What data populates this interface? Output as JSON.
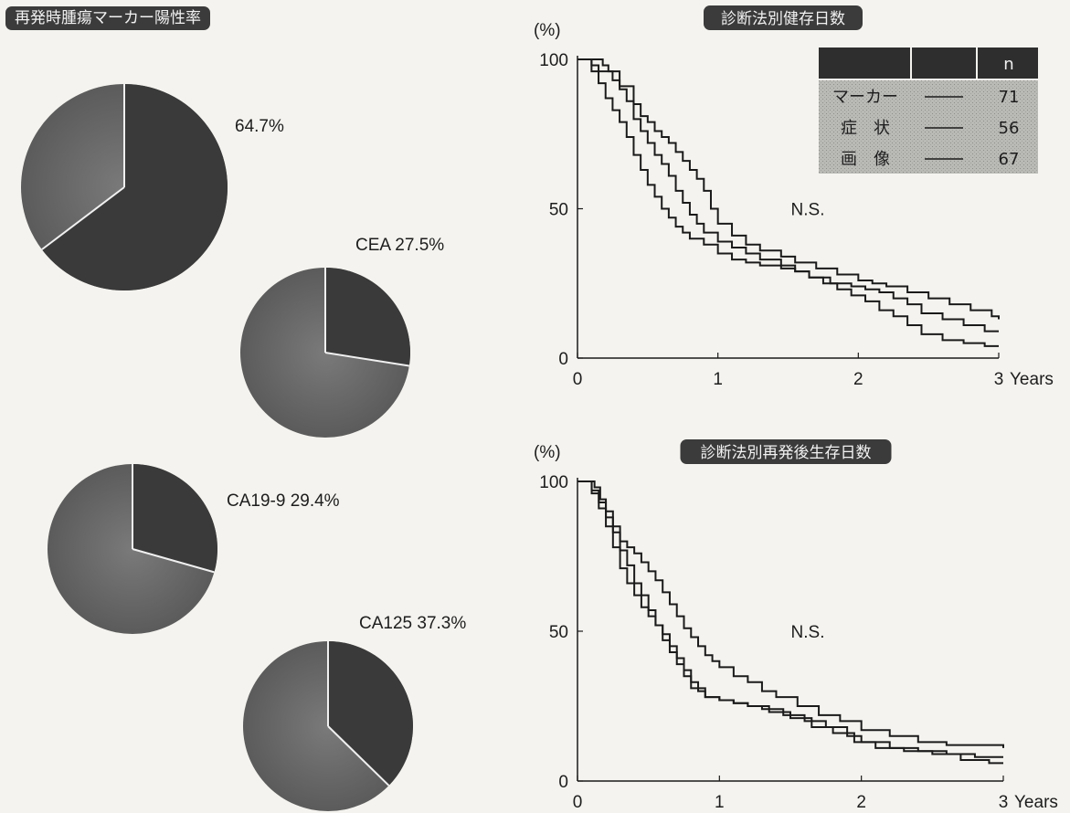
{
  "main_title": "再発時腫瘍マーカー陽性率",
  "colors": {
    "pie_dark": "#3a3a3a",
    "pie_light": "#6a6a6a",
    "line": "#1a1a1a",
    "banner": "#3b3b3b"
  },
  "chart_data": [
    {
      "type": "pie",
      "title": "",
      "slices": [
        {
          "label": "",
          "value": 64.7,
          "display": "64.7%"
        },
        {
          "label": "",
          "value": 35.3
        }
      ]
    },
    {
      "type": "pie",
      "title": "",
      "slices": [
        {
          "label": "CEA",
          "value": 27.5,
          "display": "CEA 27.5%"
        },
        {
          "label": "",
          "value": 72.5
        }
      ]
    },
    {
      "type": "pie",
      "title": "",
      "slices": [
        {
          "label": "CA19-9",
          "value": 29.4,
          "display": "CA19-9 29.4%"
        },
        {
          "label": "",
          "value": 70.6
        }
      ]
    },
    {
      "type": "pie",
      "title": "",
      "slices": [
        {
          "label": "CA125",
          "value": 37.3,
          "display": "CA125 37.3%"
        },
        {
          "label": "",
          "value": 62.7
        }
      ]
    },
    {
      "type": "line",
      "step": true,
      "title": "診断法別健存日数",
      "ylabel": "(%)",
      "xlabel": "Years",
      "xlim": [
        0,
        3
      ],
      "ylim": [
        0,
        100
      ],
      "xticks": [
        "0",
        "1",
        "2",
        "3"
      ],
      "yticks": [
        "0",
        "50",
        "100"
      ],
      "annotation": "N.S.",
      "legend": {
        "header": [
          "",
          "",
          "n"
        ],
        "rows": [
          {
            "name": "マーカー",
            "line": "――",
            "n": "71"
          },
          {
            "name": "症　状",
            "line": "――",
            "n": "56"
          },
          {
            "name": "画　像",
            "line": "――",
            "n": "67"
          }
        ]
      },
      "series": [
        {
          "x": [
            0,
            0.12,
            0.18,
            0.22,
            0.3,
            0.4,
            0.45,
            0.5,
            0.55,
            0.6,
            0.65,
            0.7,
            0.75,
            0.8,
            0.85,
            0.9,
            0.95,
            1.0,
            1.1,
            1.2,
            1.3,
            1.45,
            1.55,
            1.7,
            1.85,
            2.0,
            2.1,
            2.2,
            2.35,
            2.5,
            2.65,
            2.8,
            2.95,
            3.0
          ],
          "y": [
            100,
            100,
            98,
            96,
            91,
            85,
            81,
            79,
            76,
            74,
            72,
            69,
            66,
            63,
            60,
            56,
            50,
            45,
            41,
            38,
            36,
            34,
            32,
            30,
            28,
            26,
            25,
            24,
            22,
            20,
            18,
            16,
            14,
            13
          ]
        },
        {
          "x": [
            0,
            0.1,
            0.15,
            0.25,
            0.3,
            0.35,
            0.4,
            0.45,
            0.5,
            0.55,
            0.6,
            0.65,
            0.7,
            0.75,
            0.8,
            0.85,
            0.9,
            1.0,
            1.1,
            1.2,
            1.3,
            1.45,
            1.55,
            1.65,
            1.8,
            1.95,
            2.05,
            2.15,
            2.25,
            2.35,
            2.45,
            2.6,
            2.75,
            2.9,
            3.0
          ],
          "y": [
            100,
            98,
            96,
            93,
            90,
            86,
            80,
            76,
            72,
            68,
            65,
            61,
            56,
            52,
            48,
            45,
            42,
            39,
            37,
            35,
            33,
            31,
            29,
            27,
            25,
            24,
            23,
            22,
            20,
            18,
            15,
            13,
            11,
            9,
            9
          ]
        },
        {
          "x": [
            0,
            0.1,
            0.15,
            0.2,
            0.25,
            0.3,
            0.35,
            0.4,
            0.45,
            0.5,
            0.55,
            0.6,
            0.65,
            0.7,
            0.75,
            0.8,
            0.9,
            1.0,
            1.1,
            1.2,
            1.3,
            1.45,
            1.55,
            1.65,
            1.75,
            1.85,
            1.95,
            2.05,
            2.15,
            2.25,
            2.35,
            2.45,
            2.6,
            2.75,
            2.9,
            3.0
          ],
          "y": [
            100,
            96,
            92,
            87,
            83,
            79,
            74,
            68,
            63,
            58,
            54,
            50,
            47,
            44,
            42,
            40,
            38,
            35,
            33,
            32,
            31,
            30,
            29,
            27,
            25,
            23,
            21,
            19,
            16,
            14,
            11,
            8,
            6,
            5,
            4,
            4
          ]
        }
      ]
    },
    {
      "type": "line",
      "step": true,
      "title": "診断法別再発後生存日数",
      "ylabel": "(%)",
      "xlabel": "Years",
      "xlim": [
        0,
        3
      ],
      "ylim": [
        0,
        100
      ],
      "xticks": [
        "0",
        "1",
        "2",
        "3"
      ],
      "yticks": [
        "0",
        "50",
        "100"
      ],
      "annotation": "N.S.",
      "series": [
        {
          "x": [
            0,
            0.12,
            0.16,
            0.2,
            0.25,
            0.3,
            0.35,
            0.4,
            0.45,
            0.5,
            0.55,
            0.6,
            0.65,
            0.7,
            0.75,
            0.8,
            0.85,
            0.9,
            0.95,
            1.0,
            1.1,
            1.2,
            1.3,
            1.4,
            1.55,
            1.7,
            1.85,
            2.0,
            2.2,
            2.4,
            2.6,
            2.8,
            3.0
          ],
          "y": [
            100,
            98,
            94,
            90,
            85,
            80,
            78,
            76,
            73,
            70,
            67,
            63,
            59,
            55,
            51,
            48,
            45,
            42,
            40,
            38,
            35,
            33,
            30,
            28,
            25,
            22,
            20,
            17,
            15,
            13,
            12,
            12,
            11
          ]
        },
        {
          "x": [
            0,
            0.1,
            0.15,
            0.2,
            0.25,
            0.3,
            0.35,
            0.4,
            0.45,
            0.5,
            0.55,
            0.6,
            0.65,
            0.7,
            0.75,
            0.8,
            0.9,
            1.0,
            1.1,
            1.2,
            1.3,
            1.45,
            1.6,
            1.75,
            1.9,
            2.0,
            2.2,
            2.4,
            2.6,
            2.8,
            3.0
          ],
          "y": [
            100,
            97,
            93,
            88,
            83,
            77,
            72,
            66,
            62,
            57,
            52,
            47,
            43,
            39,
            35,
            31,
            28,
            27,
            26,
            25,
            24,
            22,
            20,
            18,
            15,
            13,
            11,
            10,
            9,
            8,
            8
          ]
        },
        {
          "x": [
            0,
            0.1,
            0.15,
            0.2,
            0.25,
            0.3,
            0.35,
            0.4,
            0.45,
            0.5,
            0.55,
            0.6,
            0.65,
            0.7,
            0.75,
            0.8,
            0.85,
            0.9,
            1.0,
            1.1,
            1.2,
            1.35,
            1.5,
            1.65,
            1.8,
            1.95,
            2.1,
            2.3,
            2.5,
            2.7,
            2.9,
            3.0
          ],
          "y": [
            100,
            96,
            91,
            85,
            78,
            71,
            66,
            62,
            58,
            55,
            52,
            49,
            45,
            41,
            37,
            33,
            30,
            28,
            27,
            26,
            25,
            23,
            21,
            18,
            16,
            13,
            11,
            10,
            9,
            7,
            6,
            6
          ]
        }
      ]
    }
  ]
}
